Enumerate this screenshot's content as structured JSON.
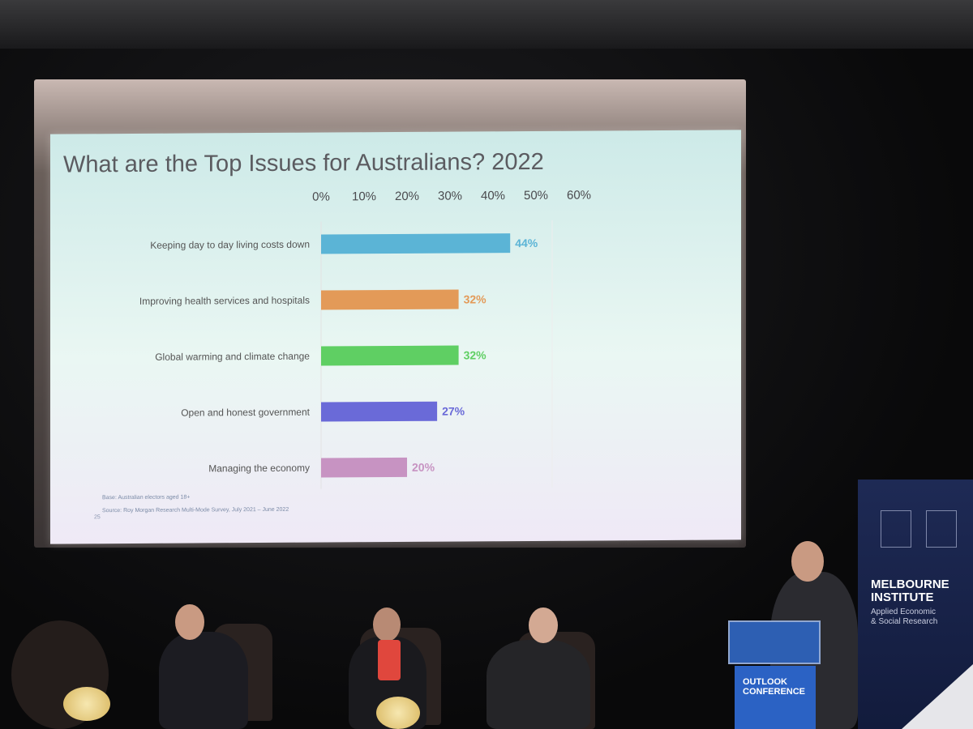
{
  "slide": {
    "title": "What are the Top Issues for Australians? 2022",
    "footnote_base": "Base: Australian electors aged 18+",
    "footnote_source": "Source: Roy Morgan Research Multi-Mode Survey, July 2021 – June 2022",
    "page_number": "25"
  },
  "chart_data": {
    "type": "bar",
    "orientation": "horizontal",
    "title": "What are the Top Issues for Australians? 2022",
    "categories": [
      "Keeping day to day living costs down",
      "Improving health services and hospitals",
      "Global warming and climate change",
      "Open and honest government",
      "Managing the economy"
    ],
    "values": [
      44,
      32,
      32,
      27,
      20
    ],
    "value_labels": [
      "44%",
      "32%",
      "32%",
      "27%",
      "20%"
    ],
    "colors": [
      "#5bb4d6",
      "#e39a58",
      "#5fcf63",
      "#6a6ad8",
      "#c793c2"
    ],
    "xlim": [
      0,
      60
    ],
    "x_ticks": [
      "0%",
      "10%",
      "20%",
      "30%",
      "40%",
      "50%",
      "60%"
    ],
    "axis_position": "top",
    "grid": false
  },
  "banner": {
    "institute": "MELBOURNE\nINSTITUTE",
    "subtitle": "Applied Economic\n& Social Research",
    "color": "#1e2a55"
  },
  "lectern": {
    "sign_text": "OUTLOOK\nCONFERENCE"
  }
}
